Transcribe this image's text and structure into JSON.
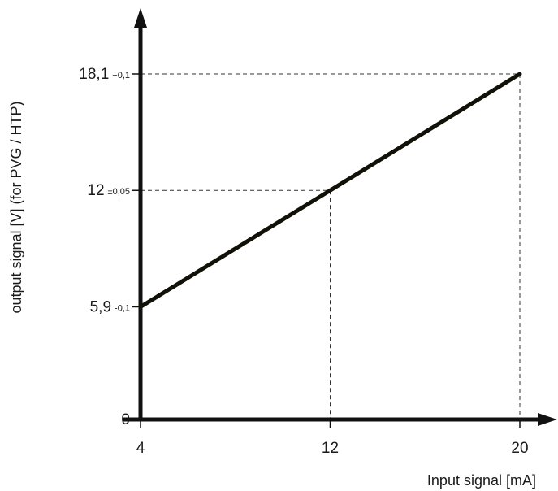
{
  "chart_data": {
    "type": "line",
    "title": "",
    "xlabel": "Input signal [mA]",
    "ylabel": "output signal [V] (for PVG / HTP)",
    "xlim": [
      4,
      20
    ],
    "ylim": [
      0,
      18.1
    ],
    "x_ticks": [
      {
        "value": 4,
        "label": "4"
      },
      {
        "value": 12,
        "label": "12"
      },
      {
        "value": 20,
        "label": "20"
      }
    ],
    "y_ticks": [
      {
        "value": 0,
        "label": "0",
        "tolerance": ""
      },
      {
        "value": 5.9,
        "label": "5,9",
        "tolerance": "-0,1"
      },
      {
        "value": 12,
        "label": "12",
        "tolerance": "±0,05"
      },
      {
        "value": 18.1,
        "label": "18,1",
        "tolerance": "+0,1"
      }
    ],
    "series": [
      {
        "x": [
          4,
          12,
          20
        ],
        "y": [
          5.9,
          12,
          18.1
        ]
      }
    ],
    "guides": [
      {
        "x": 12,
        "y": 12
      },
      {
        "x": 20,
        "y": 18.1
      }
    ],
    "grid": false,
    "colors": {
      "line": "#111108",
      "axis": "#111111",
      "guide": "#333333"
    }
  }
}
